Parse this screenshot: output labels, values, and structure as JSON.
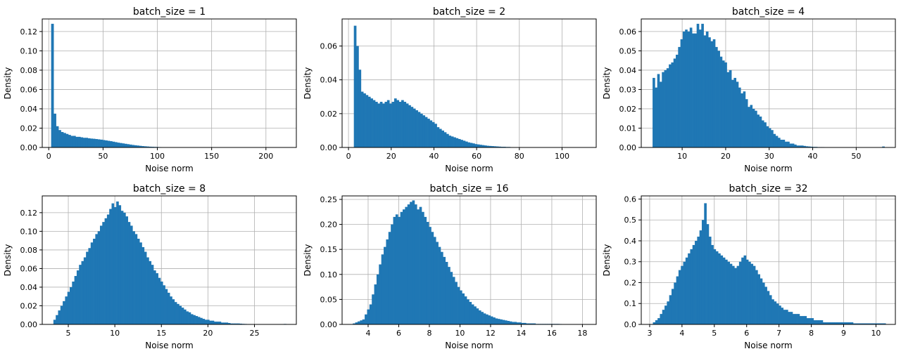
{
  "bar_color": "#1f77b4",
  "grid": true,
  "chart_data": [
    {
      "type": "bar",
      "title": "batch_size = 1",
      "xlabel": "Noise norm",
      "ylabel": "Density",
      "xlim": [
        -6,
        228
      ],
      "ylim": [
        0,
        0.133
      ],
      "xticks": [
        0,
        50,
        100,
        150,
        200
      ],
      "yticks": [
        0.0,
        0.02,
        0.04,
        0.06,
        0.08,
        0.1,
        0.12
      ],
      "ytick_labels": [
        "0.00",
        "0.02",
        "0.04",
        "0.06",
        "0.08",
        "0.10",
        "0.12"
      ],
      "bin_start": 2.2,
      "bin_width": 2.25,
      "values": [
        0.128,
        0.035,
        0.022,
        0.018,
        0.016,
        0.015,
        0.014,
        0.013,
        0.012,
        0.012,
        0.011,
        0.011,
        0.0105,
        0.01,
        0.01,
        0.0095,
        0.0092,
        0.009,
        0.0087,
        0.0084,
        0.0081,
        0.0077,
        0.0073,
        0.0069,
        0.0065,
        0.006,
        0.0055,
        0.005,
        0.0046,
        0.0042,
        0.0038,
        0.0034,
        0.003,
        0.0026,
        0.0023,
        0.002,
        0.0017,
        0.0014,
        0.0012,
        0.001,
        0.0008,
        0.0007,
        0.0006,
        0.0005,
        0.0004,
        0.0003,
        0.0003,
        0.0002,
        0.0002,
        0.0002,
        0.00015,
        0.0001,
        0.0001,
        0.0001,
        0.0001,
        8e-05,
        6e-05,
        5e-05,
        4e-05,
        3e-05,
        3e-05,
        2e-05,
        2e-05,
        2e-05,
        2e-05,
        1e-05,
        1e-05,
        1e-05,
        1e-05,
        1e-05,
        1e-05,
        1e-05,
        1e-05,
        1e-05,
        1e-05,
        1e-05,
        1e-05,
        1e-05,
        1e-05,
        1e-05,
        1e-05,
        1e-05,
        1e-05,
        1e-05,
        1e-05,
        1e-05,
        1e-05,
        1e-05,
        1e-05,
        1e-05,
        1e-05,
        1e-05,
        1e-05,
        1e-05,
        1e-05,
        1e-05,
        1e-05,
        1e-05,
        1e-05,
        1e-05
      ]
    },
    {
      "type": "bar",
      "title": "batch_size = 2",
      "xlabel": "Noise norm",
      "ylabel": "Density",
      "xlim": [
        -3,
        116
      ],
      "ylim": [
        0,
        0.076
      ],
      "xticks": [
        0,
        20,
        40,
        60,
        80,
        100
      ],
      "yticks": [
        0.0,
        0.02,
        0.04,
        0.06
      ],
      "ytick_labels": [
        "0.00",
        "0.02",
        "0.04",
        "0.06"
      ],
      "bin_start": 2.5,
      "bin_width": 1.11,
      "values": [
        0.072,
        0.06,
        0.046,
        0.033,
        0.032,
        0.031,
        0.03,
        0.029,
        0.028,
        0.027,
        0.026,
        0.027,
        0.026,
        0.027,
        0.028,
        0.026,
        0.027,
        0.029,
        0.028,
        0.027,
        0.028,
        0.027,
        0.026,
        0.025,
        0.024,
        0.023,
        0.022,
        0.021,
        0.02,
        0.019,
        0.018,
        0.017,
        0.016,
        0.015,
        0.014,
        0.012,
        0.011,
        0.01,
        0.009,
        0.008,
        0.007,
        0.0065,
        0.006,
        0.0055,
        0.005,
        0.0045,
        0.004,
        0.0035,
        0.003,
        0.0027,
        0.0024,
        0.002,
        0.0018,
        0.0016,
        0.0014,
        0.0012,
        0.001,
        0.0009,
        0.0008,
        0.0007,
        0.0006,
        0.0005,
        0.0004,
        0.0004,
        0.0003,
        0.0003,
        0.0002,
        0.0002,
        0.0002,
        0.00015,
        0.0001,
        0.0001,
        0.0001,
        0.0001,
        8e-05,
        6e-05,
        5e-05,
        4e-05,
        3e-05,
        3e-05,
        2e-05,
        2e-05,
        2e-05,
        2e-05,
        1e-05,
        1e-05,
        1e-05,
        1e-05,
        1e-05,
        1e-05,
        1e-05,
        1e-05,
        1e-05,
        1e-05,
        1e-05,
        1e-05,
        1e-05,
        1e-05,
        1e-05,
        1e-05
      ]
    },
    {
      "type": "bar",
      "title": "batch_size = 4",
      "xlabel": "Noise norm",
      "ylabel": "Density",
      "xlim": [
        0.6,
        59
      ],
      "ylim": [
        0,
        0.0665
      ],
      "xticks": [
        10,
        20,
        30,
        40,
        50
      ],
      "yticks": [
        0.0,
        0.01,
        0.02,
        0.03,
        0.04,
        0.05,
        0.06
      ],
      "ytick_labels": [
        "0.00",
        "0.01",
        "0.02",
        "0.03",
        "0.04",
        "0.05",
        "0.06"
      ],
      "bin_start": 3.2,
      "bin_width": 0.533,
      "values": [
        0.036,
        0.031,
        0.038,
        0.034,
        0.039,
        0.04,
        0.041,
        0.043,
        0.044,
        0.046,
        0.048,
        0.052,
        0.056,
        0.06,
        0.061,
        0.06,
        0.062,
        0.059,
        0.059,
        0.064,
        0.061,
        0.064,
        0.058,
        0.06,
        0.057,
        0.055,
        0.056,
        0.052,
        0.05,
        0.047,
        0.045,
        0.044,
        0.039,
        0.04,
        0.035,
        0.036,
        0.034,
        0.031,
        0.028,
        0.029,
        0.025,
        0.021,
        0.022,
        0.02,
        0.019,
        0.017,
        0.016,
        0.014,
        0.013,
        0.011,
        0.01,
        0.009,
        0.007,
        0.006,
        0.005,
        0.004,
        0.004,
        0.003,
        0.003,
        0.002,
        0.002,
        0.0015,
        0.001,
        0.001,
        0.001,
        0.0008,
        0.0006,
        0.0005,
        0.0004,
        0.0003,
        0.0003,
        0.0002,
        0.0002,
        0.0002,
        0.0001,
        0.0001,
        0.0001,
        0.0001,
        0.0001,
        0.0001,
        8e-05,
        6e-05,
        5e-05,
        4e-05,
        3e-05,
        3e-05,
        2e-05,
        2e-05,
        2e-05,
        1e-05,
        1e-05,
        1e-05,
        1e-05,
        1e-05,
        1e-05,
        1e-05,
        1e-05,
        1e-05,
        1e-05,
        0.0005
      ]
    },
    {
      "type": "bar",
      "title": "batch_size = 8",
      "xlabel": "Noise norm",
      "ylabel": "Density",
      "xlim": [
        2.2,
        29.5
      ],
      "ylim": [
        0,
        0.138
      ],
      "xticks": [
        5,
        10,
        15,
        20,
        25
      ],
      "yticks": [
        0.0,
        0.02,
        0.04,
        0.06,
        0.08,
        0.1,
        0.12
      ],
      "ytick_labels": [
        "0.00",
        "0.02",
        "0.04",
        "0.06",
        "0.08",
        "0.10",
        "0.12"
      ],
      "bin_start": 3.4,
      "bin_width": 0.25,
      "values": [
        0.005,
        0.01,
        0.015,
        0.02,
        0.025,
        0.03,
        0.035,
        0.04,
        0.046,
        0.052,
        0.058,
        0.064,
        0.068,
        0.072,
        0.078,
        0.082,
        0.088,
        0.092,
        0.097,
        0.1,
        0.106,
        0.11,
        0.114,
        0.118,
        0.124,
        0.13,
        0.126,
        0.132,
        0.128,
        0.122,
        0.12,
        0.116,
        0.11,
        0.106,
        0.1,
        0.097,
        0.092,
        0.088,
        0.083,
        0.078,
        0.072,
        0.068,
        0.064,
        0.058,
        0.055,
        0.05,
        0.046,
        0.042,
        0.038,
        0.034,
        0.03,
        0.027,
        0.024,
        0.022,
        0.02,
        0.018,
        0.016,
        0.014,
        0.013,
        0.011,
        0.01,
        0.009,
        0.008,
        0.007,
        0.006,
        0.005,
        0.005,
        0.004,
        0.004,
        0.003,
        0.003,
        0.003,
        0.002,
        0.002,
        0.002,
        0.0015,
        0.001,
        0.001,
        0.001,
        0.001,
        0.0008,
        0.0006,
        0.0005,
        0.0004,
        0.0004,
        0.0003,
        0.0003,
        0.0002,
        0.0002,
        0.0002,
        0.0001,
        0.0001,
        0.0001,
        0.0001,
        0.0001,
        0.0001,
        0.0001,
        0.0001,
        0.0001,
        0.0005
      ]
    },
    {
      "type": "bar",
      "title": "batch_size = 16",
      "xlabel": "Noise norm",
      "ylabel": "Density",
      "xlim": [
        2.3,
        18.9
      ],
      "ylim": [
        0,
        0.257
      ],
      "xticks": [
        4,
        6,
        8,
        10,
        12,
        14,
        16,
        18
      ],
      "yticks": [
        0.0,
        0.05,
        0.1,
        0.15,
        0.2,
        0.25
      ],
      "ytick_labels": [
        "0.00",
        "0.05",
        "0.10",
        "0.15",
        "0.20",
        "0.25"
      ],
      "bin_start": 3.0,
      "bin_width": 0.155,
      "values": [
        0.002,
        0.004,
        0.006,
        0.008,
        0.01,
        0.02,
        0.03,
        0.04,
        0.06,
        0.08,
        0.1,
        0.12,
        0.14,
        0.155,
        0.17,
        0.185,
        0.2,
        0.215,
        0.22,
        0.215,
        0.225,
        0.23,
        0.235,
        0.24,
        0.245,
        0.248,
        0.24,
        0.23,
        0.235,
        0.225,
        0.215,
        0.205,
        0.195,
        0.185,
        0.175,
        0.165,
        0.155,
        0.145,
        0.135,
        0.125,
        0.115,
        0.105,
        0.095,
        0.085,
        0.075,
        0.068,
        0.062,
        0.056,
        0.05,
        0.045,
        0.04,
        0.036,
        0.032,
        0.028,
        0.025,
        0.022,
        0.02,
        0.018,
        0.016,
        0.014,
        0.012,
        0.011,
        0.01,
        0.009,
        0.008,
        0.007,
        0.006,
        0.005,
        0.005,
        0.004,
        0.004,
        0.003,
        0.003,
        0.002,
        0.002,
        0.002,
        0.002,
        0.001,
        0.001,
        0.001,
        0.001,
        0.001,
        0.001,
        0.001,
        0.001,
        0.001,
        0.001,
        0.0008,
        0.0006,
        0.0005,
        0.0004,
        0.0003,
        0.0003,
        0.0002,
        0.0002,
        0.0002,
        0.0001,
        0.0001,
        0.0001,
        0.0005
      ]
    },
    {
      "type": "bar",
      "title": "batch_size = 32",
      "xlabel": "Noise norm",
      "ylabel": "Density",
      "xlim": [
        2.74,
        10.6
      ],
      "ylim": [
        0,
        0.615
      ],
      "xticks": [
        3,
        4,
        5,
        6,
        7,
        8,
        9,
        10
      ],
      "yticks": [
        0.0,
        0.1,
        0.2,
        0.3,
        0.4,
        0.5,
        0.6
      ],
      "ytick_labels": [
        "0.0",
        "0.1",
        "0.2",
        "0.3",
        "0.4",
        "0.5",
        "0.6"
      ],
      "bin_start": 3.1,
      "bin_width": 0.072,
      "values": [
        0.01,
        0.02,
        0.03,
        0.05,
        0.07,
        0.09,
        0.11,
        0.14,
        0.17,
        0.2,
        0.23,
        0.26,
        0.28,
        0.3,
        0.32,
        0.34,
        0.36,
        0.38,
        0.4,
        0.42,
        0.45,
        0.5,
        0.58,
        0.48,
        0.42,
        0.38,
        0.36,
        0.35,
        0.34,
        0.33,
        0.32,
        0.31,
        0.3,
        0.29,
        0.28,
        0.27,
        0.28,
        0.3,
        0.32,
        0.33,
        0.31,
        0.3,
        0.29,
        0.28,
        0.26,
        0.24,
        0.22,
        0.2,
        0.18,
        0.16,
        0.14,
        0.12,
        0.11,
        0.1,
        0.09,
        0.08,
        0.07,
        0.07,
        0.06,
        0.06,
        0.05,
        0.05,
        0.05,
        0.04,
        0.04,
        0.04,
        0.03,
        0.03,
        0.03,
        0.02,
        0.02,
        0.02,
        0.02,
        0.01,
        0.01,
        0.01,
        0.01,
        0.01,
        0.01,
        0.01,
        0.01,
        0.01,
        0.01,
        0.01,
        0.01,
        0.01,
        0.005,
        0.005,
        0.005,
        0.005,
        0.005,
        0.005,
        0.005,
        0.005,
        0.005,
        0.005,
        0.005,
        0.005,
        0.005,
        0.005
      ]
    }
  ]
}
